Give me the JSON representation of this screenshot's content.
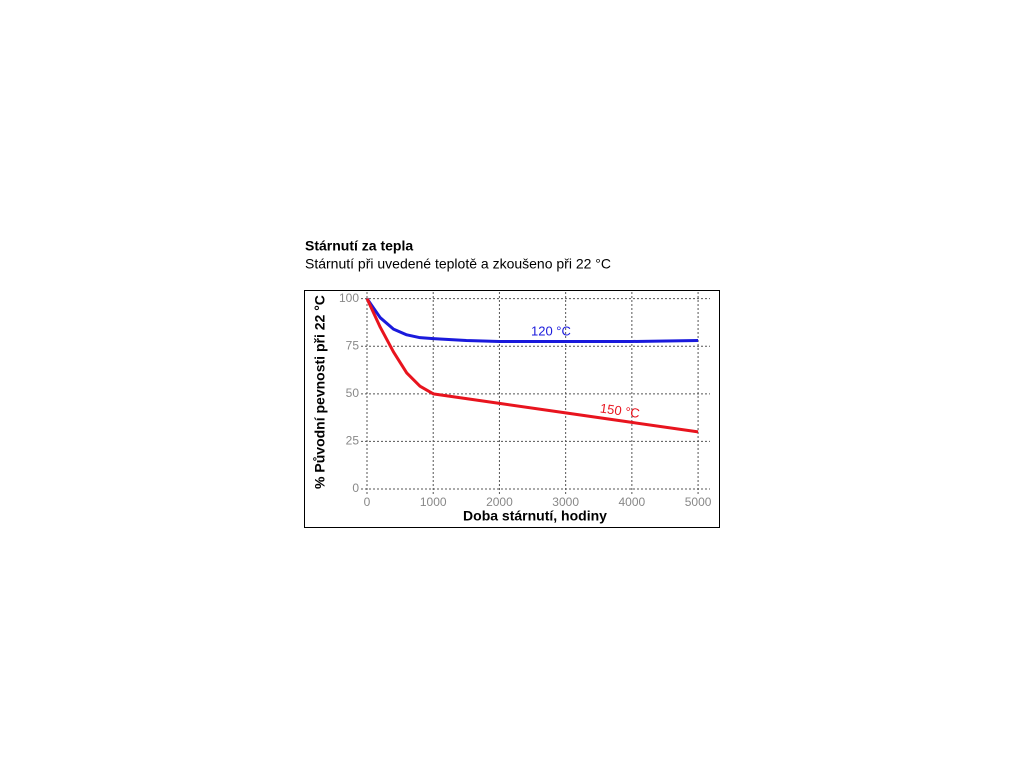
{
  "chart_data": {
    "type": "line",
    "title": "Stárnutí za tepla",
    "subtitle": "Stárnutí při uvedené teplotě a zkoušeno při 22 °C",
    "xlabel": "Doba stárnutí, hodiny",
    "ylabel": "% Původní pevnosti při 22 °C",
    "x": [
      0,
      200,
      400,
      600,
      800,
      1000,
      1500,
      2000,
      3000,
      4000,
      5000
    ],
    "series": [
      {
        "name": "120 °C",
        "color": "#1a1adc",
        "values": [
          100,
          90,
          84,
          81,
          79.5,
          79,
          78,
          77.5,
          77.5,
          77.5,
          78
        ]
      },
      {
        "name": "150 °C",
        "color": "#e8141e",
        "values": [
          100,
          85,
          72,
          61,
          54,
          50,
          47.5,
          45,
          40,
          35,
          30
        ]
      }
    ],
    "xlim": [
      0,
      5180
    ],
    "ylim": [
      0,
      103.5
    ],
    "xticks": [
      0,
      1000,
      2000,
      3000,
      4000,
      5000
    ],
    "yticks": [
      0,
      25,
      50,
      75,
      100
    ],
    "grid": true
  }
}
